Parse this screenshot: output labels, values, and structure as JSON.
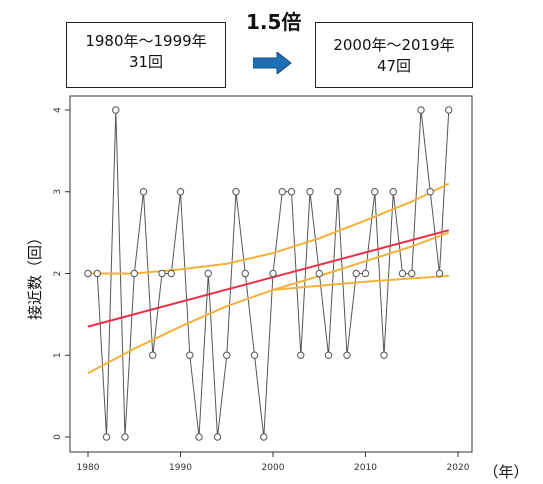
{
  "header": {
    "left_box": {
      "line1": "1980年～1999年",
      "line2": "31回"
    },
    "right_box": {
      "line1": "2000年～2019年",
      "line2": "47回"
    },
    "ratio_label": "1.5倍",
    "arrow_color": "#1f6fb5"
  },
  "chart_data": {
    "type": "line",
    "title": "",
    "ylabel": "接近数（回）",
    "xlabel": "（年）",
    "xlim": [
      1980,
      2020
    ],
    "ylim": [
      0,
      4
    ],
    "x_ticks": [
      1980,
      1990,
      2000,
      2010,
      2020
    ],
    "y_ticks": [
      0,
      1,
      2,
      3,
      4
    ],
    "grid": false,
    "series": [
      {
        "x": [
          1980,
          1981,
          1982,
          1983,
          1984,
          1985,
          1986,
          1987,
          1988,
          1989,
          1990,
          1991,
          1992,
          1993,
          1994,
          1995,
          1996,
          1997,
          1998,
          1999,
          2000,
          2001,
          2002,
          2003,
          2004,
          2005,
          2006,
          2007,
          2008,
          2009,
          2010,
          2011,
          2012,
          2013,
          2014,
          2015,
          2016,
          2017,
          2018,
          2019
        ],
        "y": [
          2,
          2,
          0,
          4,
          0,
          2,
          3,
          1,
          2,
          2,
          3,
          1,
          0,
          2,
          0,
          1,
          3,
          2,
          1,
          0,
          2,
          3,
          3,
          1,
          3,
          2,
          1,
          3,
          1,
          2,
          2,
          3,
          1,
          3,
          2,
          2,
          4,
          3,
          2,
          4
        ],
        "color": "#555555"
      },
      {
        "x": [
          1980,
          2019
        ],
        "y": [
          1.35,
          2.53
        ],
        "color": "#e8304a"
      },
      {
        "x": [
          1980,
          1985,
          1990,
          1995,
          2000,
          2005,
          2010,
          2015,
          2019
        ],
        "y": [
          0.78,
          1.08,
          1.35,
          1.6,
          1.8,
          1.97,
          2.15,
          2.33,
          2.5
        ],
        "color": "#f2b23a"
      },
      {
        "x": [
          1980,
          1985,
          1990,
          1995,
          2000,
          2005,
          2010,
          2015,
          2019
        ],
        "y": [
          2.0,
          2.0,
          2.05,
          2.12,
          2.25,
          2.43,
          2.65,
          2.88,
          3.1
        ],
        "color": "#f2b23a"
      },
      {
        "x": [
          2000,
          2005,
          2010,
          2015,
          2019
        ],
        "y": [
          1.8,
          1.85,
          1.9,
          1.94,
          1.97
        ],
        "color": "#f2b23a"
      }
    ]
  }
}
